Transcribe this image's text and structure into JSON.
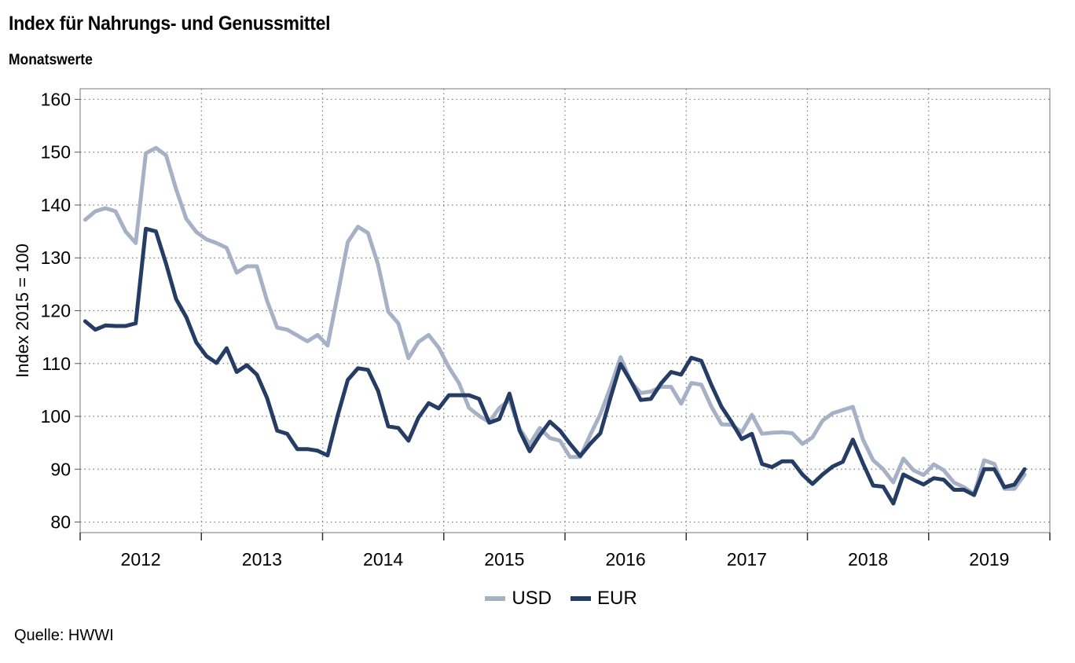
{
  "title": "Index für Nahrungs- und Genussmittel",
  "subtitle": "Monatswerte",
  "source": "Quelle: HWWI",
  "colors": {
    "usd": "#a6b1c5",
    "eur": "#253c65",
    "grid": "#7a7a7a"
  },
  "chart_data": {
    "type": "line",
    "title": "Index für Nahrungs- und Genussmittel",
    "subtitle": "Monatswerte",
    "xlabel": "",
    "ylabel": "Index 2015 = 100",
    "ylim": [
      78,
      162
    ],
    "yticks": [
      80,
      90,
      100,
      110,
      120,
      130,
      140,
      150,
      160
    ],
    "x_start": "2012-01",
    "x_end": "2019-12",
    "year_labels": [
      "2012",
      "2013",
      "2014",
      "2015",
      "2016",
      "2017",
      "2018",
      "2019"
    ],
    "grid": true,
    "legend_position": "bottom",
    "series": [
      {
        "name": "USD",
        "color": "#a6b1c5",
        "values": [
          137.2,
          138.8,
          139.4,
          138.8,
          135.0,
          132.8,
          149.8,
          150.8,
          149.4,
          143.0,
          137.4,
          134.9,
          133.5,
          132.8,
          131.9,
          127.2,
          128.4,
          128.4,
          121.9,
          116.8,
          116.4,
          115.3,
          114.2,
          115.4,
          113.4,
          123.1,
          133.0,
          135.9,
          134.7,
          128.7,
          119.8,
          117.6,
          111.0,
          114.1,
          115.4,
          113.0,
          109.3,
          106.3,
          101.6,
          100.1,
          98.9,
          101.6,
          103.1,
          97.7,
          94.7,
          97.8,
          95.9,
          95.4,
          92.3,
          92.3,
          96.5,
          100.4,
          105.5,
          111.2,
          106.6,
          104.4,
          104.7,
          105.6,
          105.6,
          102.4,
          106.3,
          106.0,
          101.8,
          98.5,
          98.4,
          97.0,
          100.3,
          96.7,
          96.9,
          97.0,
          96.8,
          94.8,
          96.0,
          99.2,
          100.6,
          101.2,
          101.8,
          95.6,
          91.7,
          90.0,
          87.5,
          92.0,
          89.8,
          88.9,
          90.9,
          89.8,
          87.5,
          86.6,
          85.3,
          91.7,
          91.0,
          86.3,
          86.3,
          89.0
        ]
      },
      {
        "name": "EUR",
        "color": "#253c65",
        "values": [
          118.0,
          116.4,
          117.2,
          117.1,
          117.1,
          117.6,
          135.5,
          135.0,
          128.9,
          122.2,
          118.8,
          114.0,
          111.4,
          110.1,
          112.9,
          108.4,
          109.7,
          107.9,
          103.5,
          97.3,
          96.7,
          93.8,
          93.8,
          93.5,
          92.6,
          100.2,
          106.9,
          109.1,
          108.8,
          104.8,
          98.1,
          97.8,
          95.4,
          99.8,
          102.5,
          101.5,
          104.0,
          104.0,
          104.0,
          103.3,
          98.8,
          99.5,
          104.3,
          97.3,
          93.4,
          96.4,
          99.0,
          97.3,
          94.8,
          92.5,
          94.8,
          96.8,
          103.5,
          109.9,
          106.7,
          103.1,
          103.3,
          106.2,
          108.4,
          107.9,
          111.1,
          110.5,
          105.9,
          101.8,
          98.9,
          95.7,
          96.7,
          91.0,
          90.4,
          91.5,
          91.5,
          89.0,
          87.2,
          89.0,
          90.5,
          91.4,
          95.6,
          91.1,
          86.9,
          86.7,
          83.5,
          89.0,
          88.0,
          87.1,
          88.3,
          88.0,
          86.1,
          86.1,
          85.1,
          90.0,
          90.0,
          86.6,
          87.1,
          90.0
        ]
      }
    ]
  }
}
